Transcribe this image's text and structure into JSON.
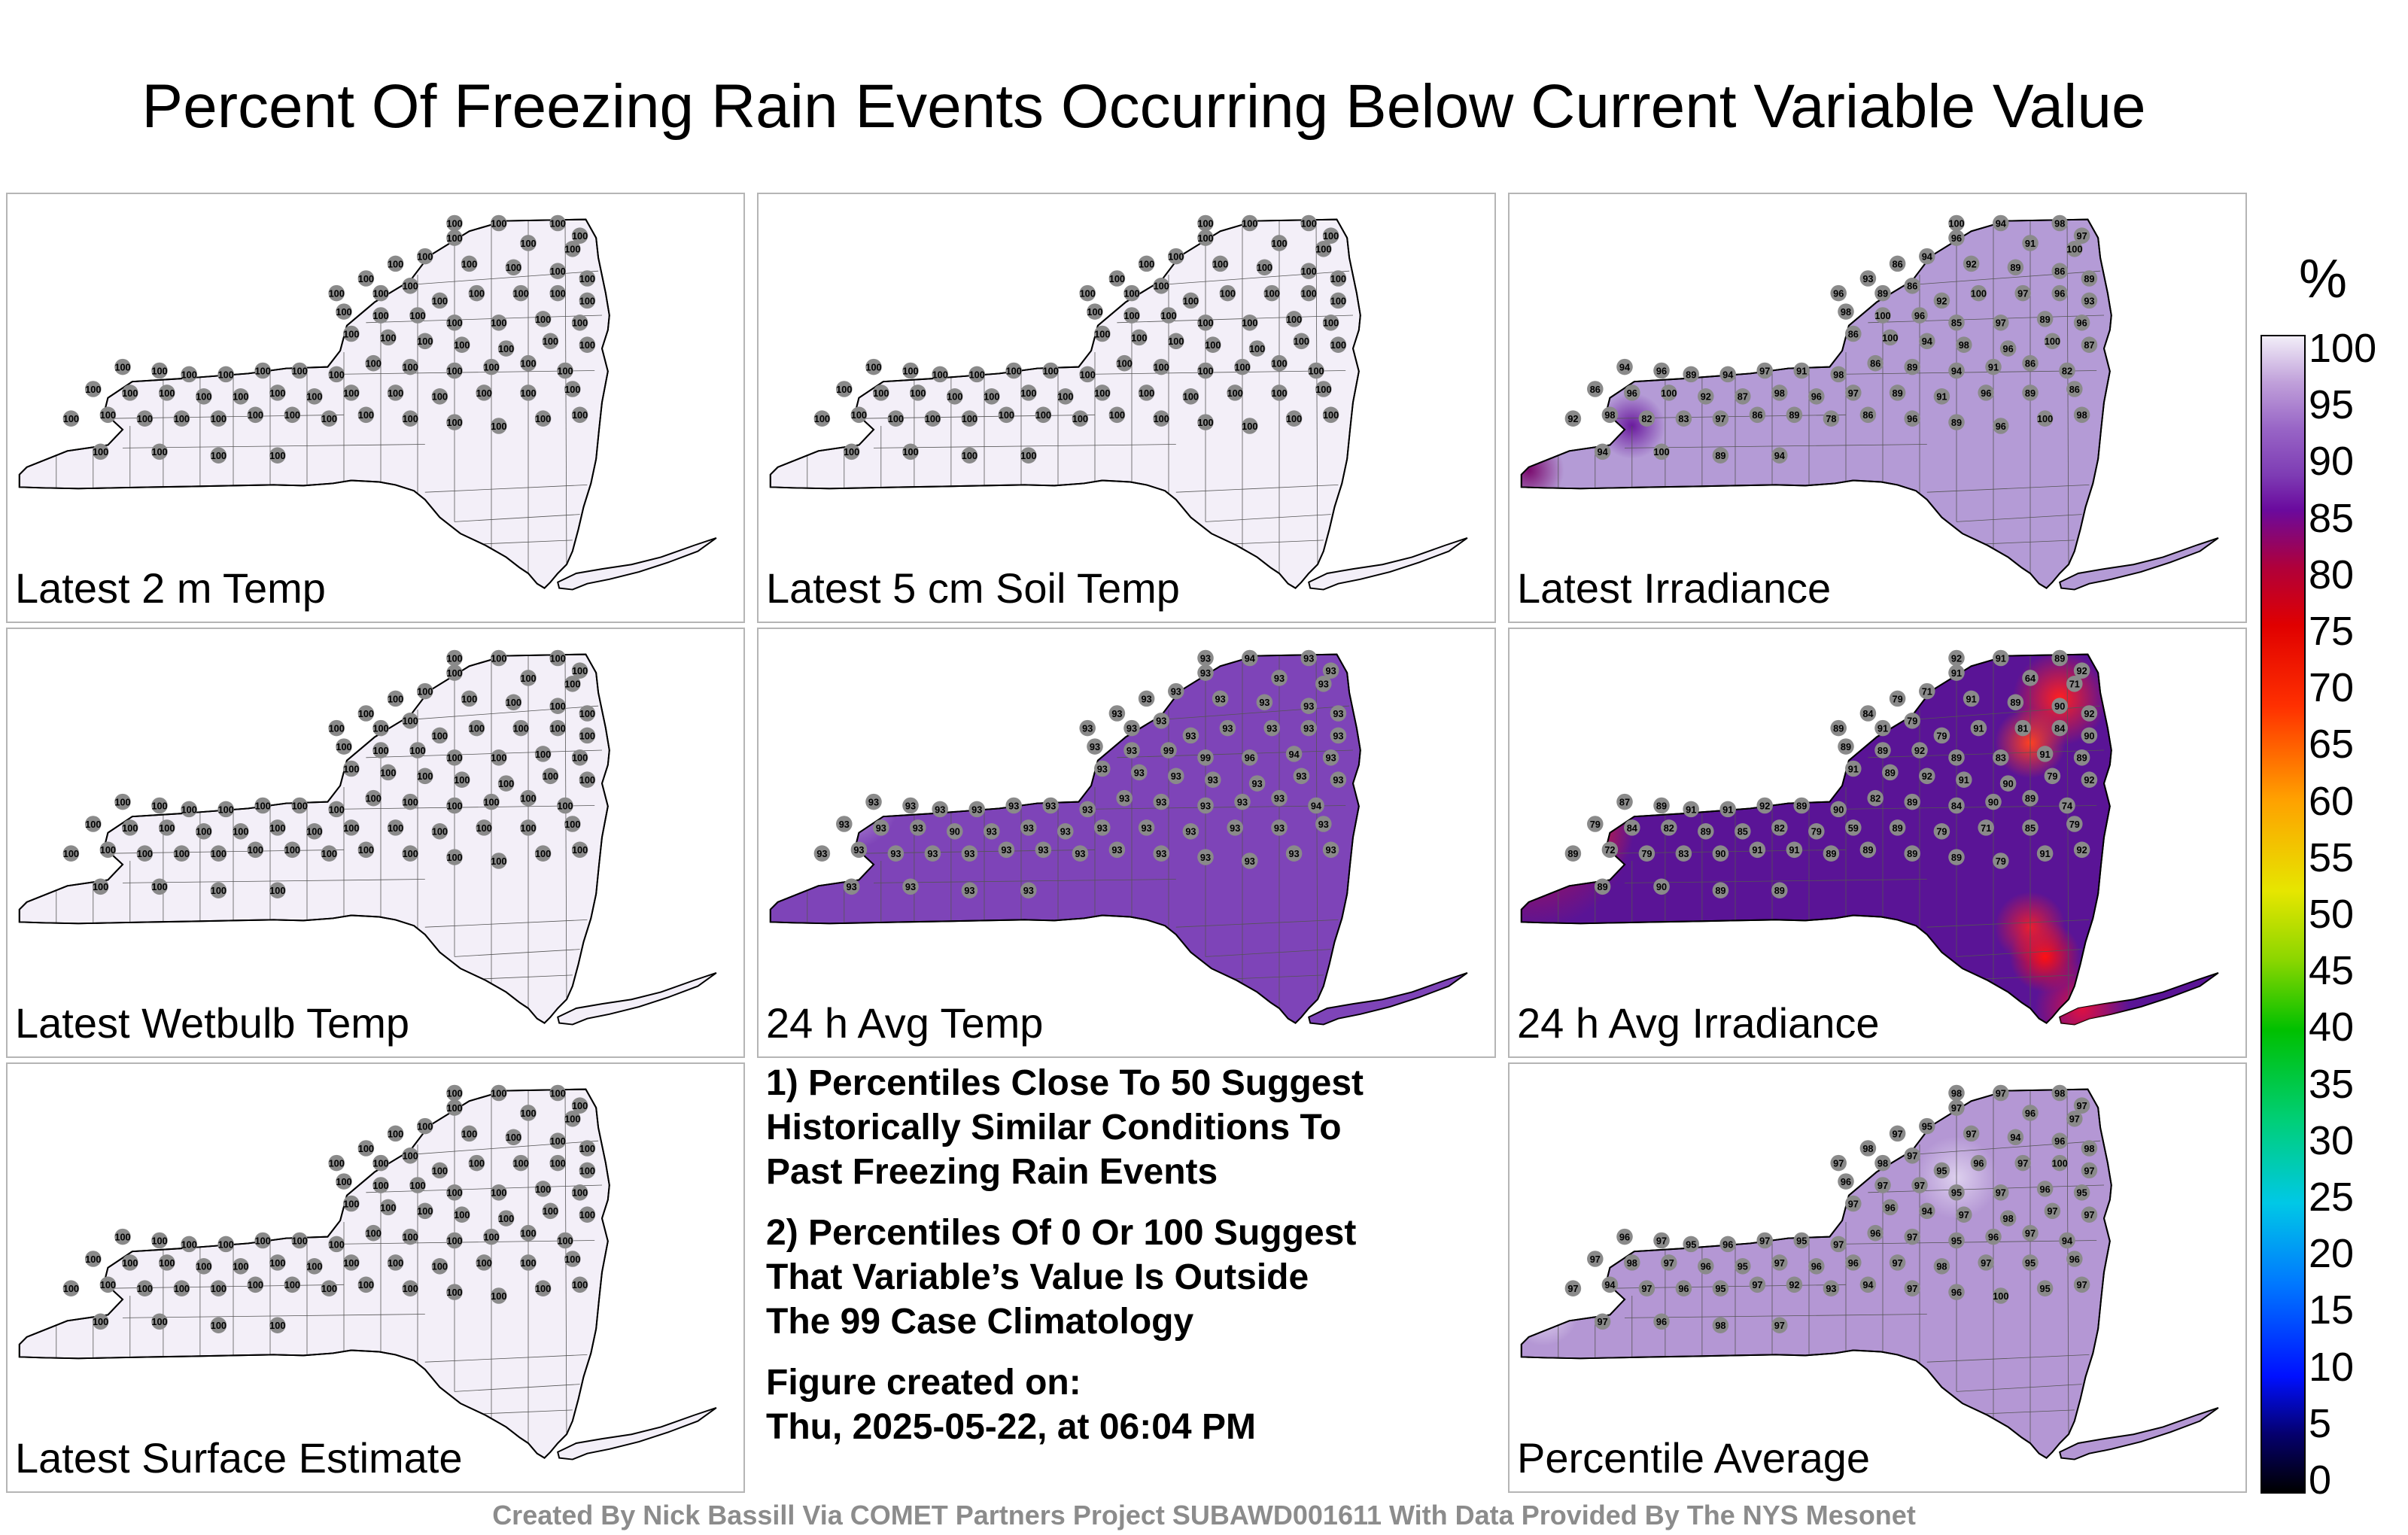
{
  "title": "Percent Of Freezing Rain Events Occurring Below Current Variable Value",
  "colors": {
    "state_fill_100": "#f3eff8",
    "state_fill_93": "#7e44b8",
    "state_fill_irr": "#b49bd6",
    "state_fill_irr24": "#5a1496",
    "state_fill_avg": "#b497d4",
    "station_marker": "#8a8a8a",
    "hotspot": "#ff1010"
  },
  "panels": [
    {
      "label": "Latest 2 m Temp",
      "stations": [
        "100",
        "100",
        "100",
        "100",
        "100",
        "100",
        "100",
        "100",
        "100",
        "100",
        "100",
        "100",
        "100",
        "100",
        "100",
        "100",
        "100",
        "100",
        "100",
        "100",
        "100",
        "100",
        "100",
        "100",
        "100",
        "100",
        "100",
        "100",
        "100",
        "100",
        "100",
        "100",
        "100",
        "100",
        "100",
        "100",
        "100",
        "100",
        "100",
        "100",
        "100",
        "100",
        "100",
        "100",
        "100",
        "100",
        "100",
        "100",
        "100",
        "100",
        "100",
        "100",
        "100",
        "100",
        "100",
        "100",
        "100",
        "100",
        "100",
        "100",
        "100",
        "100",
        "100",
        "100",
        "100",
        "100",
        "100",
        "100",
        "100",
        "100",
        "100",
        "100",
        "100",
        "100",
        "100",
        "100",
        "100",
        "100",
        "100",
        "100"
      ]
    },
    {
      "label": "Latest 5 cm Soil Temp",
      "stations": [
        "100",
        "100",
        "100",
        "100",
        "100",
        "100",
        "100",
        "100",
        "100",
        "100",
        "100",
        "100",
        "100",
        "100",
        "100",
        "100",
        "100",
        "100",
        "100",
        "100",
        "100",
        "100",
        "100",
        "100",
        "100",
        "100",
        "100",
        "100",
        "100",
        "100",
        "100",
        "100",
        "100",
        "100",
        "100",
        "100",
        "100",
        "100",
        "100",
        "100",
        "100",
        "100",
        "100",
        "100",
        "100",
        "100",
        "100",
        "100",
        "100",
        "100",
        "100",
        "100",
        "100",
        "100",
        "100",
        "100",
        "100",
        "100",
        "100",
        "100",
        "100",
        "100",
        "100",
        "100",
        "100",
        "100",
        "100",
        "100",
        "100",
        "100",
        "100",
        "100",
        "100",
        "100",
        "100",
        "100",
        "100",
        "100",
        "100",
        "100"
      ]
    },
    {
      "label": "Latest Irradiance",
      "stations": [
        "100",
        "94",
        "98",
        "97",
        "96",
        "91",
        "100",
        "93",
        "86",
        "94",
        "92",
        "89",
        "86",
        "89",
        "96",
        "89",
        "86",
        "92",
        "100",
        "97",
        "96",
        "93",
        "98",
        "100",
        "96",
        "85",
        "97",
        "89",
        "96",
        "86",
        "100",
        "94",
        "98",
        "96",
        "100",
        "87",
        "94",
        "96",
        "89",
        "94",
        "97",
        "91",
        "98",
        "86",
        "89",
        "94",
        "91",
        "86",
        "82",
        "86",
        "96",
        "100",
        "92",
        "87",
        "98",
        "96",
        "97",
        "89",
        "91",
        "96",
        "89",
        "86",
        "92",
        "98",
        "82",
        "83",
        "97",
        "86",
        "89",
        "78",
        "86",
        "96",
        "89",
        "96",
        "100",
        "98",
        "94",
        "100",
        "89",
        "94"
      ]
    },
    {
      "label": "Latest Wetbulb Temp",
      "stations": [
        "100",
        "100",
        "100",
        "100",
        "100",
        "100",
        "100",
        "100",
        "100",
        "100",
        "100",
        "100",
        "100",
        "100",
        "100",
        "100",
        "100",
        "100",
        "100",
        "100",
        "100",
        "100",
        "100",
        "100",
        "100",
        "100",
        "100",
        "100",
        "100",
        "100",
        "100",
        "100",
        "100",
        "100",
        "100",
        "100",
        "100",
        "100",
        "100",
        "100",
        "100",
        "100",
        "100",
        "100",
        "100",
        "100",
        "100",
        "100",
        "100",
        "100",
        "100",
        "100",
        "100",
        "100",
        "100",
        "100",
        "100",
        "100",
        "100",
        "100",
        "100",
        "100",
        "100",
        "100",
        "100",
        "100",
        "100",
        "100",
        "100",
        "100",
        "100",
        "100",
        "100",
        "100",
        "100",
        "100",
        "100",
        "100",
        "100",
        "100"
      ]
    },
    {
      "label": "24 h Avg Temp",
      "stations": [
        "93",
        "94",
        "93",
        "93",
        "93",
        "93",
        "93",
        "93",
        "93",
        "93",
        "93",
        "93",
        "93",
        "93",
        "93",
        "93",
        "93",
        "93",
        "93",
        "93",
        "93",
        "93",
        "93",
        "93",
        "99",
        "99",
        "96",
        "94",
        "93",
        "93",
        "93",
        "93",
        "93",
        "93",
        "93",
        "93",
        "93",
        "93",
        "93",
        "93",
        "93",
        "93",
        "93",
        "93",
        "93",
        "93",
        "93",
        "93",
        "94",
        "93",
        "93",
        "93",
        "90",
        "93",
        "93",
        "93",
        "93",
        "93",
        "93",
        "93",
        "93",
        "93",
        "93",
        "93",
        "93",
        "93",
        "93",
        "93",
        "93",
        "93",
        "93",
        "93",
        "93",
        "93",
        "93",
        "93",
        "93",
        "93",
        "93",
        "93"
      ]
    },
    {
      "label": "24 h Avg Irradiance",
      "stations": [
        "92",
        "91",
        "89",
        "92",
        "91",
        "64",
        "71",
        "84",
        "79",
        "71",
        "91",
        "89",
        "90",
        "92",
        "89",
        "91",
        "79",
        "79",
        "91",
        "81",
        "84",
        "90",
        "89",
        "89",
        "92",
        "89",
        "83",
        "91",
        "89",
        "91",
        "89",
        "92",
        "91",
        "90",
        "79",
        "92",
        "87",
        "89",
        "91",
        "91",
        "92",
        "89",
        "90",
        "82",
        "89",
        "84",
        "90",
        "89",
        "74",
        "79",
        "84",
        "82",
        "89",
        "85",
        "82",
        "79",
        "59",
        "89",
        "79",
        "71",
        "85",
        "79",
        "89",
        "72",
        "79",
        "83",
        "90",
        "91",
        "91",
        "89",
        "89",
        "89",
        "89",
        "79",
        "91",
        "92",
        "89",
        "90",
        "89",
        "89"
      ]
    },
    {
      "label": "Latest Surface Estimate",
      "stations": [
        "100",
        "100",
        "100",
        "100",
        "100",
        "100",
        "100",
        "100",
        "100",
        "100",
        "100",
        "100",
        "100",
        "100",
        "100",
        "100",
        "100",
        "100",
        "100",
        "100",
        "100",
        "100",
        "100",
        "100",
        "100",
        "100",
        "100",
        "100",
        "100",
        "100",
        "100",
        "100",
        "100",
        "100",
        "100",
        "100",
        "100",
        "100",
        "100",
        "100",
        "100",
        "100",
        "100",
        "100",
        "100",
        "100",
        "100",
        "100",
        "100",
        "100",
        "100",
        "100",
        "100",
        "100",
        "100",
        "100",
        "100",
        "100",
        "100",
        "100",
        "100",
        "100",
        "100",
        "100",
        "100",
        "100",
        "100",
        "100",
        "100",
        "100",
        "100",
        "100",
        "100",
        "100",
        "100",
        "100",
        "100",
        "100",
        "100",
        "100"
      ]
    },
    {
      "label": "Percentile Average",
      "stations": [
        "98",
        "97",
        "98",
        "97",
        "97",
        "96",
        "97",
        "98",
        "97",
        "95",
        "97",
        "94",
        "96",
        "98",
        "97",
        "98",
        "97",
        "95",
        "96",
        "97",
        "100",
        "97",
        "96",
        "97",
        "97",
        "95",
        "97",
        "96",
        "95",
        "97",
        "96",
        "94",
        "97",
        "98",
        "97",
        "97",
        "96",
        "97",
        "95",
        "96",
        "97",
        "95",
        "97",
        "96",
        "97",
        "95",
        "96",
        "97",
        "94",
        "97",
        "98",
        "97",
        "96",
        "95",
        "97",
        "96",
        "96",
        "97",
        "98",
        "97",
        "95",
        "96",
        "97",
        "94",
        "97",
        "96",
        "95",
        "97",
        "92",
        "93",
        "94",
        "97",
        "96",
        "100",
        "95",
        "97",
        "97",
        "96",
        "98",
        "97"
      ]
    }
  ],
  "notes": {
    "line1": "1) Percentiles Close To 50 Suggest",
    "line2": "Historically Similar Conditions To",
    "line3": "Past Freezing Rain Events",
    "line4": "2) Percentiles Of 0 Or 100 Suggest",
    "line5": "That Variable’s Value Is Outside",
    "line6": "The 99 Case Climatology",
    "line7": "Figure created on:",
    "line8": "Thu, 2025-05-22, at 06:04 PM"
  },
  "colorbar": {
    "unit": "%",
    "ticks": [
      "100",
      "95",
      "90",
      "85",
      "80",
      "75",
      "70",
      "65",
      "60",
      "55",
      "50",
      "45",
      "40",
      "35",
      "30",
      "25",
      "20",
      "15",
      "10",
      "5",
      "0"
    ]
  },
  "credit": "Created By Nick Bassill Via COMET Partners Project SUBAWD001611 With Data Provided By The NYS Mesonet"
}
